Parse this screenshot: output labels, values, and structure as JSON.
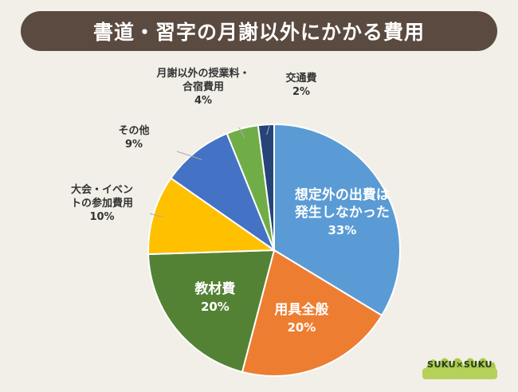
{
  "title": "書道・習字の月謝以外にかかる費用",
  "logo_text": "SUKU×SUKU",
  "chart_data": {
    "type": "pie",
    "title": "書道・習字の月謝以外にかかる費用",
    "unit": "%",
    "slices": [
      {
        "label": [
          "想定外の出費は",
          "発生しなかった"
        ],
        "value": 33,
        "value_text": "33%",
        "color": "#5b9bd5",
        "label_inside": true
      },
      {
        "label": [
          "用具全般"
        ],
        "value": 20,
        "value_text": "20%",
        "color": "#ed7d31",
        "label_inside": true
      },
      {
        "label": [
          "教材費"
        ],
        "value": 20,
        "value_text": "20%",
        "color": "#548235",
        "label_inside": true
      },
      {
        "label": [
          "大会・イベン",
          "トの参加費用"
        ],
        "value": 10,
        "value_text": "10%",
        "color": "#ffc000",
        "label_inside": false
      },
      {
        "label": [
          "その他"
        ],
        "value": 9,
        "value_text": "9%",
        "color": "#4472c4",
        "label_inside": false
      },
      {
        "label": [
          "月謝以外の授業料・",
          "合宿費用"
        ],
        "value": 4,
        "value_text": "4%",
        "color": "#70ad47",
        "label_inside": false
      },
      {
        "label": [
          "交通費"
        ],
        "value": 2,
        "value_text": "2%",
        "color": "#264478",
        "label_inside": false
      }
    ],
    "start_angle": "12 o'clock",
    "direction": "clockwise",
    "legend": "none"
  }
}
